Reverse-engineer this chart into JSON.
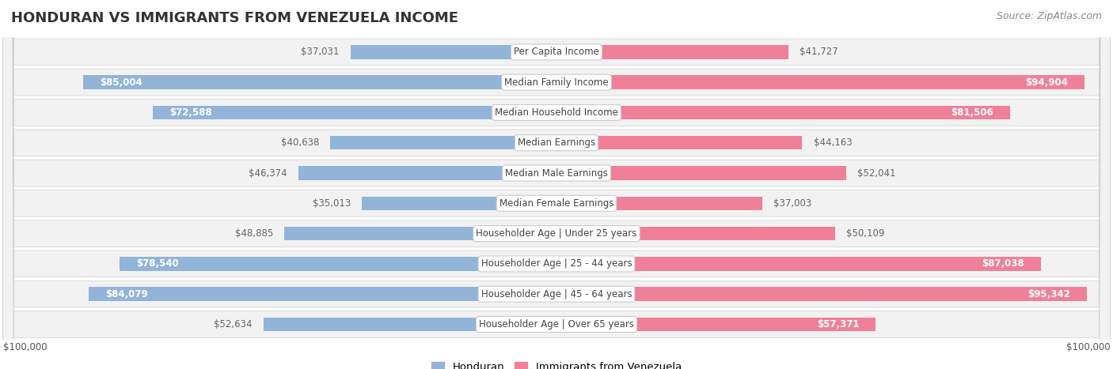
{
  "title": "HONDURAN VS IMMIGRANTS FROM VENEZUELA INCOME",
  "source": "Source: ZipAtlas.com",
  "categories": [
    "Per Capita Income",
    "Median Family Income",
    "Median Household Income",
    "Median Earnings",
    "Median Male Earnings",
    "Median Female Earnings",
    "Householder Age | Under 25 years",
    "Householder Age | 25 - 44 years",
    "Householder Age | 45 - 64 years",
    "Householder Age | Over 65 years"
  ],
  "honduran_values": [
    37031,
    85004,
    72588,
    40638,
    46374,
    35013,
    48885,
    78540,
    84079,
    52634
  ],
  "venezuela_values": [
    41727,
    94904,
    81506,
    44163,
    52041,
    37003,
    50109,
    87038,
    95342,
    57371
  ],
  "max_value": 100000,
  "honduran_color": "#92b4d9",
  "venezuela_color": "#f08098",
  "honduran_dark_color": "#5a8fc4",
  "venezuela_dark_color": "#e8567a",
  "honduran_label": "Honduran",
  "venezuela_label": "Immigrants from Venezuela",
  "row_bg": "#f2f2f2",
  "label_bg": "#ffffff",
  "label_border": "#cccccc",
  "xlabel_left": "$100,000",
  "xlabel_right": "$100,000",
  "title_fontsize": 13,
  "source_fontsize": 9,
  "value_fontsize": 8.5,
  "category_fontsize": 8.5,
  "inside_threshold": 55000
}
